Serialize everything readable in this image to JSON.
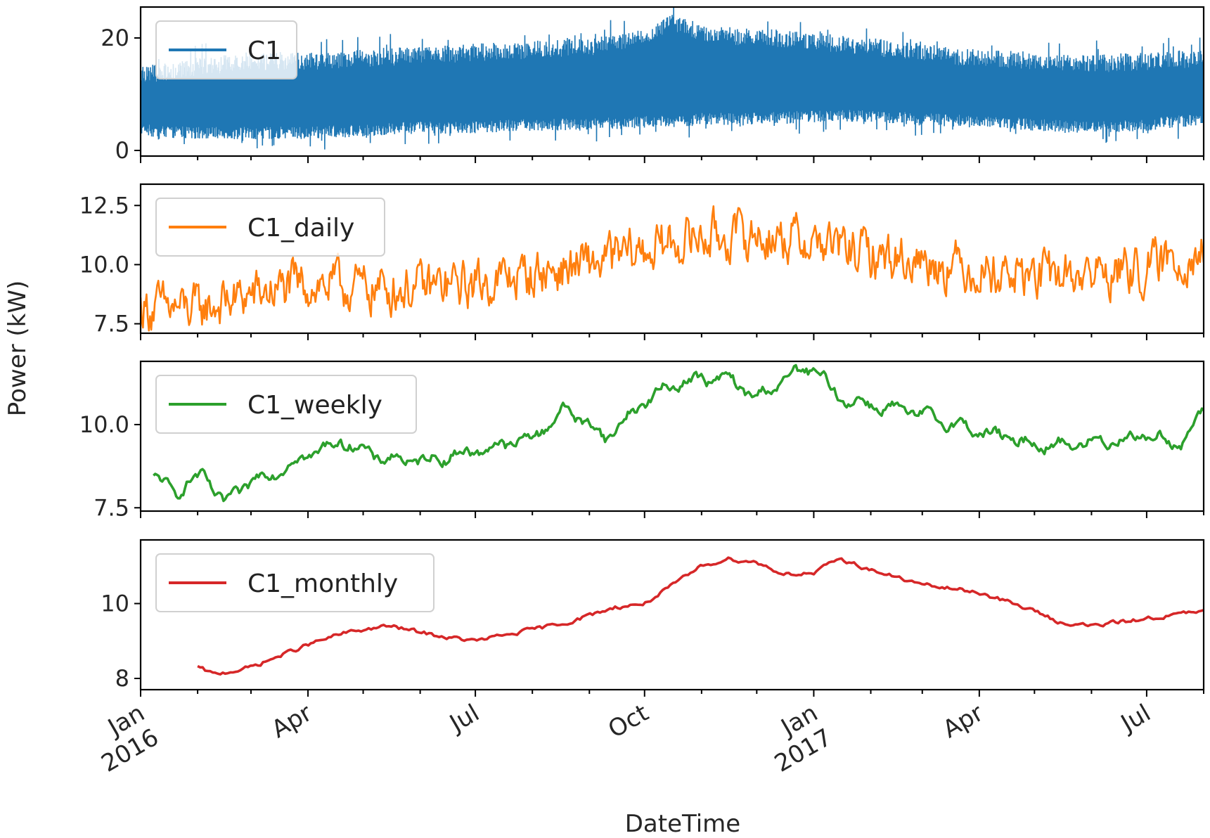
{
  "chart_data": {
    "type": "line",
    "layout": "4 stacked panels sharing x axis",
    "xlabel": "DateTime",
    "ylabel": "Power (kW)",
    "x_range": [
      "2016-01-01",
      "2017-08-01"
    ],
    "x_major_ticks": [
      {
        "date": "2016-01-01",
        "lines": [
          "Jan",
          "2016"
        ]
      },
      {
        "date": "2016-04-01",
        "lines": [
          "Apr"
        ]
      },
      {
        "date": "2016-07-01",
        "lines": [
          "Jul"
        ]
      },
      {
        "date": "2016-10-01",
        "lines": [
          "Oct"
        ]
      },
      {
        "date": "2017-01-01",
        "lines": [
          "Jan",
          "2017"
        ]
      },
      {
        "date": "2017-04-01",
        "lines": [
          "Apr"
        ]
      },
      {
        "date": "2017-07-01",
        "lines": [
          "Jul"
        ]
      }
    ],
    "x_minor_ticks": [
      "2016-02-01",
      "2016-03-01",
      "2016-05-01",
      "2016-06-01",
      "2016-08-01",
      "2016-09-01",
      "2016-11-01",
      "2016-12-01",
      "2017-02-01",
      "2017-03-01",
      "2017-05-01",
      "2017-06-01",
      "2017-08-01"
    ],
    "panels": [
      {
        "name": "C1",
        "color": "#1f77b4",
        "legend": "top-left",
        "ylim": [
          -1,
          25.5
        ],
        "yticks": [
          {
            "value": 0,
            "label": "0"
          },
          {
            "value": 20,
            "label": "20"
          }
        ],
        "style": "band",
        "series": {
          "x": [
            "2016-01-01",
            "2016-02-01",
            "2016-03-01",
            "2016-04-01",
            "2016-05-01",
            "2016-06-01",
            "2016-07-01",
            "2016-08-01",
            "2016-09-01",
            "2016-10-01",
            "2016-10-15",
            "2016-11-01",
            "2016-12-01",
            "2017-01-01",
            "2017-02-01",
            "2017-03-01",
            "2017-04-01",
            "2017-05-01",
            "2017-06-01",
            "2017-07-01",
            "2017-08-01"
          ],
          "min": [
            2.5,
            2.0,
            2.0,
            2.0,
            2.5,
            3.0,
            3.0,
            3.5,
            3.5,
            4.0,
            4.0,
            4.5,
            4.5,
            5.0,
            5.0,
            4.5,
            4.0,
            3.5,
            3.0,
            3.5,
            4.5
          ],
          "max": [
            15.0,
            16.5,
            17.5,
            17.5,
            18.0,
            18.5,
            19.0,
            19.5,
            20.0,
            22.0,
            24.5,
            22.5,
            21.5,
            21.0,
            20.0,
            19.0,
            18.0,
            17.5,
            17.0,
            17.5,
            18.0
          ]
        }
      },
      {
        "name": "C1_daily",
        "color": "#ff7f0e",
        "legend": "top-left",
        "ylim": [
          7.1,
          13.4
        ],
        "yticks": [
          {
            "value": 7.5,
            "label": "7.5"
          },
          {
            "value": 10.0,
            "label": "10.0"
          },
          {
            "value": 12.5,
            "label": "12.5"
          }
        ],
        "style": "line",
        "series": {
          "x": [
            "2016-01-01",
            "2016-02-01",
            "2016-03-01",
            "2016-04-01",
            "2016-05-01",
            "2016-06-01",
            "2016-07-01",
            "2016-08-01",
            "2016-09-01",
            "2016-10-01",
            "2016-11-01",
            "2016-12-01",
            "2017-01-01",
            "2017-02-01",
            "2017-03-01",
            "2017-04-01",
            "2017-05-01",
            "2017-06-01",
            "2017-07-01",
            "2017-08-01"
          ],
          "values": [
            8.2,
            8.1,
            8.7,
            9.2,
            9.0,
            9.0,
            9.2,
            9.6,
            10.0,
            10.6,
            11.2,
            11.2,
            11.0,
            10.4,
            10.2,
            9.8,
            9.5,
            9.6,
            9.8,
            10.6
          ]
        }
      },
      {
        "name": "C1_weekly",
        "color": "#2ca02c",
        "legend": "top-left",
        "ylim": [
          7.4,
          11.9
        ],
        "yticks": [
          {
            "value": 7.5,
            "label": "7.5"
          },
          {
            "value": 10.0,
            "label": "10.0"
          }
        ],
        "style": "line",
        "series": {
          "x": [
            "2016-01-08",
            "2016-01-20",
            "2016-02-05",
            "2016-02-15",
            "2016-03-01",
            "2016-03-15",
            "2016-04-01",
            "2016-04-20",
            "2016-05-10",
            "2016-06-01",
            "2016-07-01",
            "2016-08-01",
            "2016-08-20",
            "2016-09-10",
            "2016-10-01",
            "2016-10-20",
            "2016-11-15",
            "2016-12-01",
            "2016-12-20",
            "2017-01-01",
            "2017-01-15",
            "2017-02-01",
            "2017-03-01",
            "2017-04-01",
            "2017-05-01",
            "2017-05-20",
            "2017-06-10",
            "2017-07-01",
            "2017-07-20",
            "2017-08-01"
          ],
          "values": [
            8.4,
            8.0,
            8.5,
            7.6,
            8.3,
            8.6,
            9.1,
            9.5,
            9.0,
            8.9,
            9.2,
            9.6,
            10.5,
            9.6,
            10.7,
            11.3,
            11.4,
            10.8,
            11.5,
            11.7,
            10.8,
            10.6,
            10.3,
            9.8,
            9.4,
            9.4,
            9.5,
            9.7,
            9.4,
            10.4
          ]
        }
      },
      {
        "name": "C1_monthly",
        "color": "#d62728",
        "legend": "top-left",
        "ylim": [
          7.7,
          11.7
        ],
        "yticks": [
          {
            "value": 8,
            "label": "8"
          },
          {
            "value": 10,
            "label": "10"
          }
        ],
        "style": "line",
        "series": {
          "x": [
            "2016-02-01",
            "2016-02-10",
            "2016-03-01",
            "2016-04-01",
            "2016-04-20",
            "2016-05-01",
            "2016-05-15",
            "2016-06-15",
            "2016-07-01",
            "2016-08-01",
            "2016-08-20",
            "2016-09-15",
            "2016-10-01",
            "2016-10-20",
            "2016-11-01",
            "2016-11-15",
            "2016-12-01",
            "2016-12-15",
            "2017-01-01",
            "2017-01-15",
            "2017-02-01",
            "2017-03-01",
            "2017-04-01",
            "2017-05-01",
            "2017-05-15",
            "2017-06-01",
            "2017-07-01",
            "2017-08-01"
          ],
          "values": [
            8.3,
            8.1,
            8.3,
            8.9,
            9.2,
            9.3,
            9.4,
            9.1,
            9.0,
            9.3,
            9.5,
            9.9,
            10.0,
            10.6,
            11.0,
            11.2,
            11.1,
            10.8,
            10.8,
            11.2,
            10.9,
            10.5,
            10.3,
            9.8,
            9.5,
            9.4,
            9.6,
            9.8
          ]
        }
      }
    ]
  }
}
